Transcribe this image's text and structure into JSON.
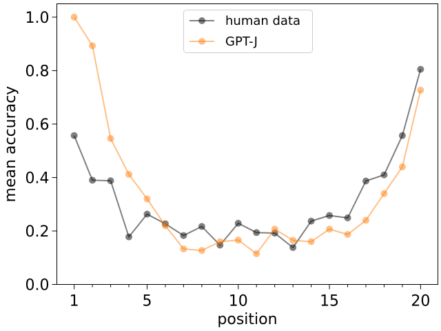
{
  "chart_data": {
    "type": "line",
    "title": "",
    "xlabel": "position",
    "ylabel": "mean accuracy",
    "xlim": [
      0.05,
      20.95
    ],
    "ylim": [
      0.0,
      1.05
    ],
    "xticks": [
      1,
      5,
      10,
      15,
      20
    ],
    "xtick_labels": [
      "1",
      "5",
      "10",
      "15",
      "20"
    ],
    "minor_xticks": [
      2,
      3,
      4,
      6,
      7,
      8,
      9,
      11,
      12,
      13,
      14,
      16,
      17,
      18,
      19
    ],
    "yticks": [
      0.0,
      0.2,
      0.4,
      0.6,
      0.8,
      1.0
    ],
    "ytick_labels": [
      "0.0",
      "0.2",
      "0.4",
      "0.6",
      "0.8",
      "1.0"
    ],
    "grid": false,
    "legend_position": "top-center",
    "x": [
      1,
      2,
      3,
      4,
      5,
      6,
      7,
      8,
      9,
      10,
      11,
      12,
      13,
      14,
      15,
      16,
      17,
      18,
      19,
      20
    ],
    "series": [
      {
        "name": "human data",
        "color": "#000000",
        "values": [
          0.557,
          0.39,
          0.388,
          0.178,
          0.263,
          0.227,
          0.183,
          0.217,
          0.147,
          0.229,
          0.194,
          0.192,
          0.138,
          0.237,
          0.258,
          0.249,
          0.387,
          0.41,
          0.557,
          0.805
        ]
      },
      {
        "name": "GPT-J",
        "color": "#ff7f0e",
        "values": [
          1.0,
          0.893,
          0.546,
          0.412,
          0.32,
          0.22,
          0.133,
          0.127,
          0.16,
          0.166,
          0.115,
          0.207,
          0.165,
          0.16,
          0.207,
          0.187,
          0.24,
          0.34,
          0.44,
          0.727
        ]
      }
    ]
  }
}
